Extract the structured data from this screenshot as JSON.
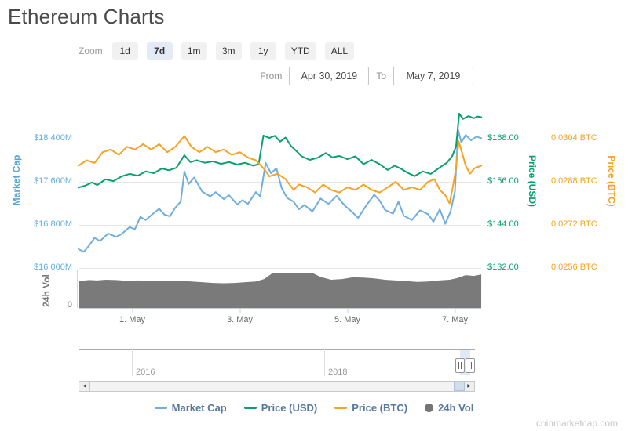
{
  "page": {
    "title": "Ethereum Charts",
    "watermark": "coinmarketcap.com"
  },
  "toolbar": {
    "zoom_label": "Zoom",
    "zoom_buttons": [
      {
        "label": "1d",
        "active": false
      },
      {
        "label": "7d",
        "active": true
      },
      {
        "label": "1m",
        "active": false
      },
      {
        "label": "3m",
        "active": false
      },
      {
        "label": "1y",
        "active": false
      },
      {
        "label": "YTD",
        "active": false
      },
      {
        "label": "ALL",
        "active": false
      }
    ],
    "from_label": "From",
    "from_value": "Apr 30, 2019",
    "to_label": "To",
    "to_value": "May 7, 2019"
  },
  "chart_data": {
    "type": "line",
    "x_axis": {
      "unit": "days since Apr 30, 2019 00:00",
      "start": "Apr 30, 2019",
      "end": "May 7, 2019",
      "range": [
        0,
        7.49
      ],
      "ticks": [
        {
          "t": 1,
          "label": "1. May"
        },
        {
          "t": 3,
          "label": "3. May"
        },
        {
          "t": 5,
          "label": "5. May"
        },
        {
          "t": 7,
          "label": "7. May"
        }
      ]
    },
    "y_axes": {
      "market_cap": {
        "title": "Market Cap",
        "color": "#63ACDF",
        "unit": "USD millions",
        "gridline_values": [
          18400,
          17600,
          16800,
          16000
        ],
        "labels": [
          "$18 400M",
          "$17 600M",
          "$16 800M",
          "$16 000M"
        ]
      },
      "price_usd": {
        "title": "Price (USD)",
        "color": "#0AA06E",
        "gridline_values": [
          168,
          156,
          144,
          132
        ],
        "labels": [
          "$168.00",
          "$156.00",
          "$144.00",
          "$132.00"
        ]
      },
      "price_btc": {
        "title": "Price (BTC)",
        "color": "#F8A21D",
        "gridline_values": [
          0.0304,
          0.0288,
          0.0272,
          0.0256
        ],
        "labels": [
          "0.0304 BTC",
          "0.0288 BTC",
          "0.0272 BTC",
          "0.0256 BTC"
        ]
      },
      "volume": {
        "title": "24h Vol",
        "color": "#777777",
        "zero_label": "0",
        "scale": "relative 0-100"
      }
    },
    "series": [
      {
        "name": "Market Cap",
        "axis": "market_cap",
        "color": "#6FAEE0",
        "type": "line",
        "points": [
          [
            0,
            16350
          ],
          [
            0.1,
            16300
          ],
          [
            0.2,
            16420
          ],
          [
            0.3,
            16560
          ],
          [
            0.4,
            16500
          ],
          [
            0.55,
            16640
          ],
          [
            0.7,
            16580
          ],
          [
            0.8,
            16630
          ],
          [
            0.95,
            16760
          ],
          [
            1.05,
            16720
          ],
          [
            1.15,
            16950
          ],
          [
            1.25,
            16890
          ],
          [
            1.4,
            17020
          ],
          [
            1.5,
            17100
          ],
          [
            1.6,
            16990
          ],
          [
            1.7,
            16960
          ],
          [
            1.8,
            17120
          ],
          [
            1.9,
            17230
          ],
          [
            1.97,
            17790
          ],
          [
            2.05,
            17560
          ],
          [
            2.15,
            17680
          ],
          [
            2.3,
            17420
          ],
          [
            2.45,
            17330
          ],
          [
            2.55,
            17410
          ],
          [
            2.7,
            17280
          ],
          [
            2.8,
            17350
          ],
          [
            2.95,
            17180
          ],
          [
            3.05,
            17260
          ],
          [
            3.15,
            17190
          ],
          [
            3.3,
            17410
          ],
          [
            3.38,
            17330
          ],
          [
            3.48,
            17950
          ],
          [
            3.58,
            17760
          ],
          [
            3.68,
            17850
          ],
          [
            3.78,
            17480
          ],
          [
            3.88,
            17300
          ],
          [
            4.0,
            17230
          ],
          [
            4.1,
            17090
          ],
          [
            4.2,
            17170
          ],
          [
            4.35,
            17050
          ],
          [
            4.5,
            17290
          ],
          [
            4.65,
            17190
          ],
          [
            4.8,
            17340
          ],
          [
            4.95,
            17160
          ],
          [
            5.1,
            17030
          ],
          [
            5.2,
            16930
          ],
          [
            5.35,
            17160
          ],
          [
            5.5,
            17360
          ],
          [
            5.6,
            17250
          ],
          [
            5.7,
            17080
          ],
          [
            5.85,
            17010
          ],
          [
            5.95,
            17230
          ],
          [
            6.05,
            16970
          ],
          [
            6.2,
            16890
          ],
          [
            6.35,
            17070
          ],
          [
            6.5,
            17000
          ],
          [
            6.6,
            16860
          ],
          [
            6.72,
            17090
          ],
          [
            6.82,
            16820
          ],
          [
            6.92,
            17050
          ],
          [
            7.0,
            17420
          ],
          [
            7.06,
            18560
          ],
          [
            7.12,
            18330
          ],
          [
            7.2,
            18470
          ],
          [
            7.3,
            18370
          ],
          [
            7.4,
            18440
          ],
          [
            7.49,
            18410
          ]
        ]
      },
      {
        "name": "Price (USD)",
        "axis": "price_usd",
        "color": "#0AA06E",
        "type": "line",
        "points": [
          [
            0,
            154.4
          ],
          [
            0.12,
            154.9
          ],
          [
            0.25,
            155.8
          ],
          [
            0.35,
            155.1
          ],
          [
            0.5,
            156.7
          ],
          [
            0.65,
            156.2
          ],
          [
            0.8,
            157.5
          ],
          [
            0.95,
            158.2
          ],
          [
            1.1,
            157.7
          ],
          [
            1.25,
            158.9
          ],
          [
            1.4,
            158.4
          ],
          [
            1.55,
            159.7
          ],
          [
            1.68,
            159.2
          ],
          [
            1.82,
            159.9
          ],
          [
            1.97,
            163.4
          ],
          [
            2.08,
            161.5
          ],
          [
            2.2,
            162.0
          ],
          [
            2.35,
            161.3
          ],
          [
            2.5,
            161.7
          ],
          [
            2.65,
            161.0
          ],
          [
            2.8,
            161.5
          ],
          [
            2.95,
            160.8
          ],
          [
            3.1,
            161.3
          ],
          [
            3.25,
            160.5
          ],
          [
            3.35,
            160.9
          ],
          [
            3.44,
            168.9
          ],
          [
            3.55,
            168.2
          ],
          [
            3.65,
            168.8
          ],
          [
            3.75,
            167.2
          ],
          [
            3.85,
            168.3
          ],
          [
            3.95,
            166.0
          ],
          [
            4.05,
            164.6
          ],
          [
            4.15,
            163.1
          ],
          [
            4.3,
            162.1
          ],
          [
            4.45,
            162.7
          ],
          [
            4.6,
            164.0
          ],
          [
            4.72,
            162.8
          ],
          [
            4.85,
            163.2
          ],
          [
            5.0,
            162.3
          ],
          [
            5.15,
            163.1
          ],
          [
            5.3,
            160.9
          ],
          [
            5.45,
            162.1
          ],
          [
            5.6,
            160.9
          ],
          [
            5.75,
            159.3
          ],
          [
            5.88,
            160.5
          ],
          [
            6.0,
            159.6
          ],
          [
            6.12,
            158.5
          ],
          [
            6.25,
            157.6
          ],
          [
            6.4,
            158.9
          ],
          [
            6.55,
            158.2
          ],
          [
            6.7,
            159.8
          ],
          [
            6.85,
            161.3
          ],
          [
            6.95,
            163.2
          ],
          [
            7.02,
            165.8
          ],
          [
            7.08,
            175.0
          ],
          [
            7.15,
            173.5
          ],
          [
            7.25,
            174.3
          ],
          [
            7.35,
            173.7
          ],
          [
            7.42,
            174.2
          ],
          [
            7.49,
            174.0
          ]
        ]
      },
      {
        "name": "Price (BTC)",
        "axis": "price_btc",
        "color": "#F8A21D",
        "type": "line",
        "points": [
          [
            0,
            0.0294
          ],
          [
            0.15,
            0.0296
          ],
          [
            0.3,
            0.0295
          ],
          [
            0.45,
            0.0299
          ],
          [
            0.6,
            0.03
          ],
          [
            0.75,
            0.0298
          ],
          [
            0.9,
            0.0301
          ],
          [
            1.05,
            0.03
          ],
          [
            1.2,
            0.0302
          ],
          [
            1.35,
            0.03
          ],
          [
            1.5,
            0.0302
          ],
          [
            1.65,
            0.0299
          ],
          [
            1.8,
            0.0301
          ],
          [
            1.97,
            0.0305
          ],
          [
            2.1,
            0.0301
          ],
          [
            2.25,
            0.0299
          ],
          [
            2.4,
            0.0301
          ],
          [
            2.55,
            0.0299
          ],
          [
            2.7,
            0.03
          ],
          [
            2.85,
            0.0298
          ],
          [
            3.0,
            0.0299
          ],
          [
            3.15,
            0.0297
          ],
          [
            3.3,
            0.0296
          ],
          [
            3.44,
            0.0293
          ],
          [
            3.55,
            0.029
          ],
          [
            3.7,
            0.0291
          ],
          [
            3.85,
            0.0289
          ],
          [
            4.0,
            0.0285
          ],
          [
            4.1,
            0.0287
          ],
          [
            4.25,
            0.0286
          ],
          [
            4.4,
            0.0284
          ],
          [
            4.55,
            0.0287
          ],
          [
            4.7,
            0.0285
          ],
          [
            4.85,
            0.0284
          ],
          [
            5.0,
            0.0286
          ],
          [
            5.15,
            0.0285
          ],
          [
            5.3,
            0.0287
          ],
          [
            5.45,
            0.0285
          ],
          [
            5.6,
            0.0284
          ],
          [
            5.75,
            0.0286
          ],
          [
            5.9,
            0.0288
          ],
          [
            6.05,
            0.0285
          ],
          [
            6.2,
            0.0286
          ],
          [
            6.35,
            0.0285
          ],
          [
            6.5,
            0.0288
          ],
          [
            6.62,
            0.0289
          ],
          [
            6.72,
            0.0285
          ],
          [
            6.82,
            0.0283
          ],
          [
            6.9,
            0.028
          ],
          [
            6.97,
            0.0287
          ],
          [
            7.02,
            0.0293
          ],
          [
            7.07,
            0.0303
          ],
          [
            7.13,
            0.0299
          ],
          [
            7.2,
            0.0294
          ],
          [
            7.28,
            0.0291
          ],
          [
            7.36,
            0.0293
          ],
          [
            7.49,
            0.0294
          ]
        ]
      },
      {
        "name": "24h Vol",
        "axis": "volume",
        "color": "#7A7A7A",
        "type": "area",
        "points": [
          [
            0,
            76
          ],
          [
            0.2,
            79
          ],
          [
            0.35,
            78
          ],
          [
            0.5,
            80
          ],
          [
            0.7,
            79
          ],
          [
            0.9,
            77
          ],
          [
            1.1,
            78
          ],
          [
            1.3,
            76
          ],
          [
            1.5,
            77
          ],
          [
            1.7,
            76
          ],
          [
            1.9,
            77
          ],
          [
            2.1,
            75
          ],
          [
            2.3,
            73
          ],
          [
            2.5,
            71
          ],
          [
            2.7,
            70
          ],
          [
            2.9,
            71
          ],
          [
            3.1,
            73
          ],
          [
            3.3,
            75
          ],
          [
            3.45,
            82
          ],
          [
            3.6,
            98
          ],
          [
            3.8,
            100
          ],
          [
            4.0,
            99
          ],
          [
            4.2,
            100
          ],
          [
            4.35,
            99
          ],
          [
            4.5,
            88
          ],
          [
            4.7,
            80
          ],
          [
            4.9,
            82
          ],
          [
            5.1,
            87
          ],
          [
            5.3,
            86
          ],
          [
            5.5,
            84
          ],
          [
            5.7,
            80
          ],
          [
            5.9,
            78
          ],
          [
            6.1,
            76
          ],
          [
            6.3,
            74
          ],
          [
            6.5,
            75
          ],
          [
            6.7,
            78
          ],
          [
            6.9,
            80
          ],
          [
            7.05,
            85
          ],
          [
            7.2,
            93
          ],
          [
            7.35,
            91
          ],
          [
            7.49,
            95
          ]
        ]
      }
    ],
    "legend_position": "bottom-center",
    "grid": true
  },
  "navigator": {
    "years": [
      {
        "label": "2016"
      },
      {
        "label": "2018"
      }
    ]
  },
  "legend": {
    "items": [
      {
        "label": "Market Cap",
        "color": "#6FAEE0",
        "marker": "line"
      },
      {
        "label": "Price (USD)",
        "color": "#0AA06E",
        "marker": "line"
      },
      {
        "label": "Price (BTC)",
        "color": "#F8A21D",
        "marker": "line"
      },
      {
        "label": "24h Vol",
        "color": "#757575",
        "marker": "circle"
      }
    ]
  }
}
